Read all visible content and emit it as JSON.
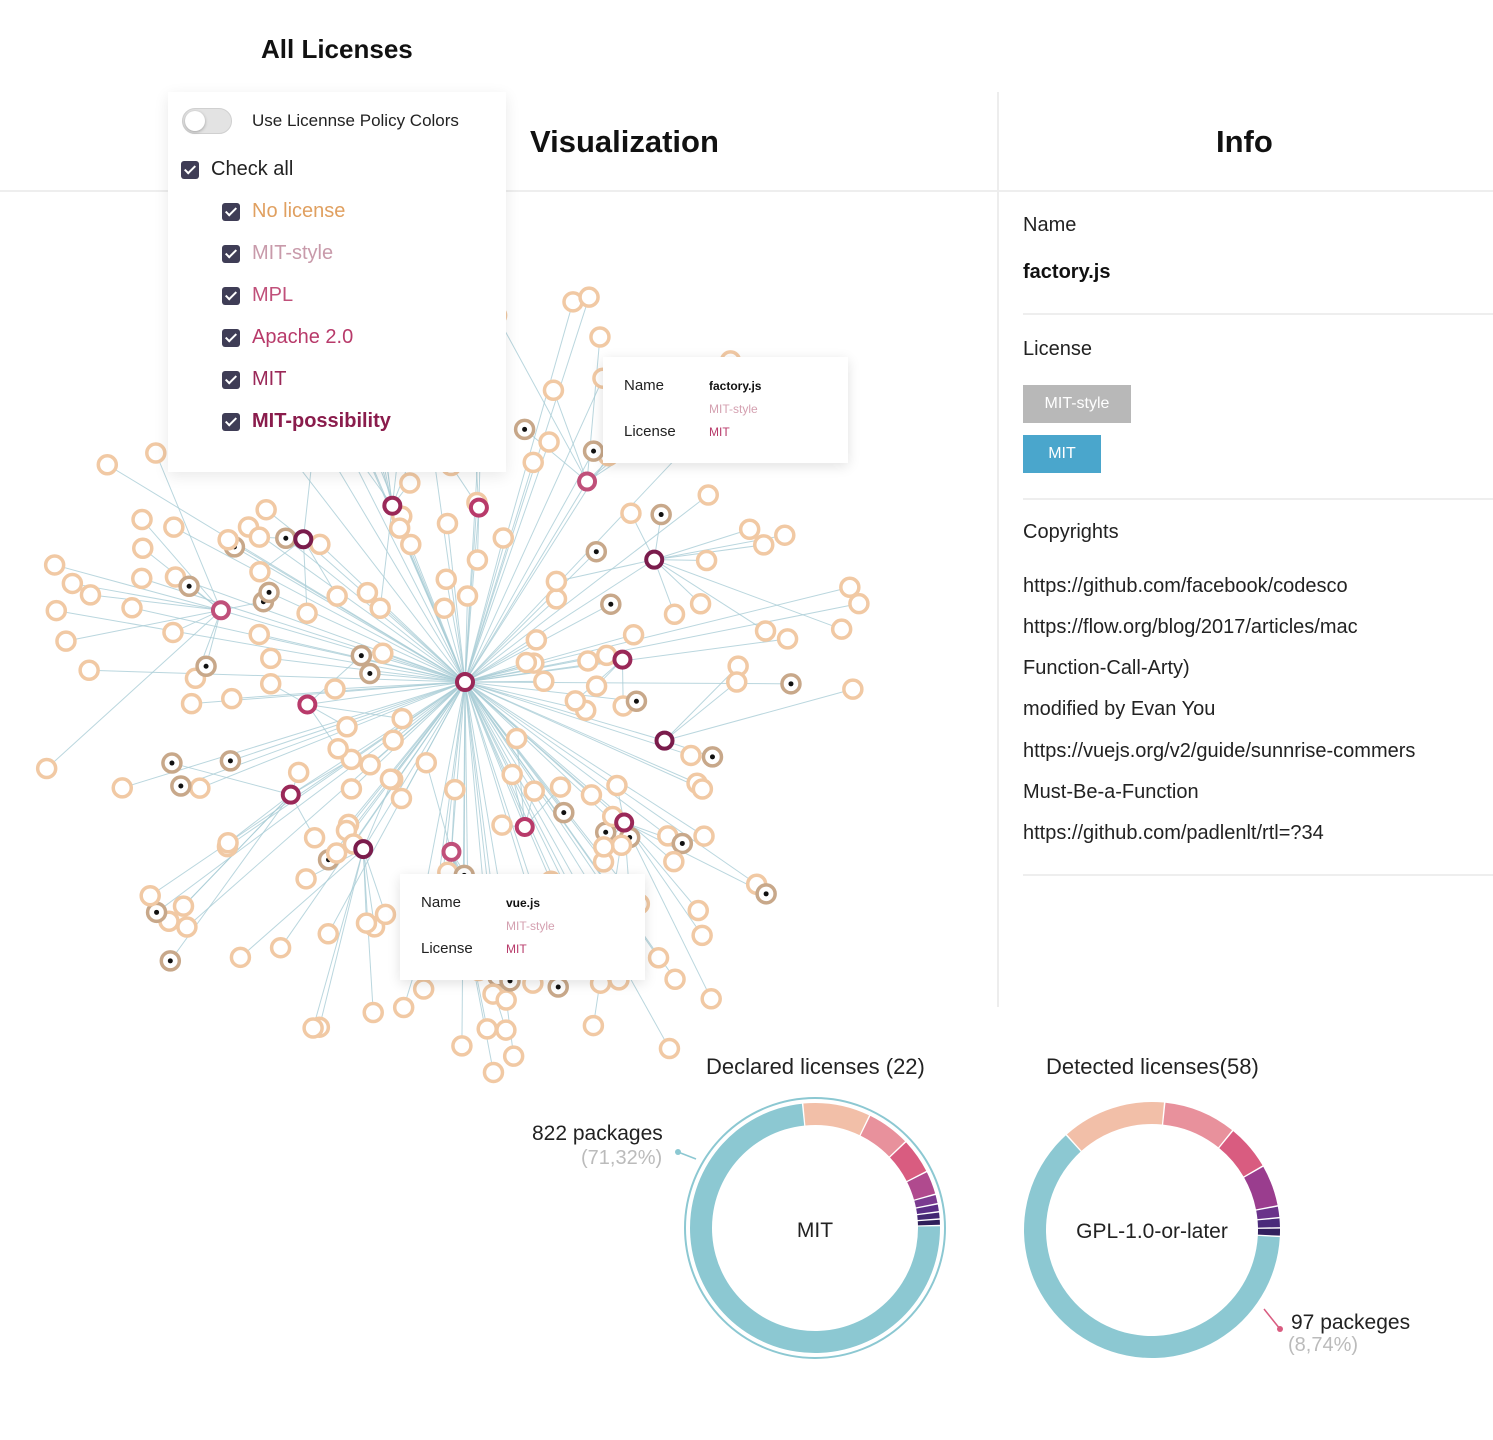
{
  "app": {
    "title": "All Licenses"
  },
  "filters": {
    "toggle_label": "Use Licennse Policy Colors",
    "check_all_label": "Check all",
    "items": [
      {
        "label": "No license",
        "color": "#e0a060"
      },
      {
        "label": "MIT-style",
        "color": "#c89aaa"
      },
      {
        "label": "MPL",
        "color": "#c0507a"
      },
      {
        "label": "Apache 2.0",
        "color": "#b83a6a"
      },
      {
        "label": "MIT",
        "color": "#9a2858"
      },
      {
        "label": "MIT-possibility",
        "color": "#8a1c4c"
      }
    ]
  },
  "visualization": {
    "title": "Visualization",
    "tooltips": [
      {
        "name_key": "Name",
        "license_key": "License",
        "name": "factory.js",
        "licenses": [
          "MIT-style",
          "MIT"
        ]
      },
      {
        "name_key": "Name",
        "license_key": "License",
        "name": "vue.js",
        "licenses": [
          "MIT-style",
          "MIT"
        ]
      }
    ]
  },
  "info": {
    "title": "Info",
    "name_label": "Name",
    "name_value": "factory.js",
    "license_label": "License",
    "license_badges": [
      {
        "label": "MIT-style",
        "color": "#b8b8b8"
      },
      {
        "label": "MIT",
        "color": "#4aa6cc"
      }
    ],
    "copyrights_label": "Copyrights",
    "copyrights": [
      "https://github.com/facebook/codesco",
      "https://flow.org/blog/2017/articles/mac",
      "Function-Call-Arty)",
      "modified by Evan You",
      "https://vuejs.org/v2/guide/sunnrise-commers",
      "Must-Be-a-Function",
      "https://github.com/padlenlt/rtl=?34"
    ]
  },
  "charts": {
    "declared": {
      "title": "Declared licenses (22)",
      "center_label": "MIT",
      "callout_main": "822 packages",
      "callout_sub": "(71,32%)"
    },
    "detected": {
      "title": "Detected licenses(58)",
      "center_label": "GPL-1.0-or-later",
      "callout_main": "97 packeges",
      "callout_sub": "(8,74%)"
    }
  },
  "chart_data": [
    {
      "type": "pie",
      "title": "Declared licenses (22)",
      "center_label": "MIT",
      "slices": [
        {
          "name": "MIT",
          "value": 71.32,
          "color": "#8cc8d2"
        },
        {
          "value": 8.5,
          "color": "#f2bfa8"
        },
        {
          "value": 5.5,
          "color": "#e8919c"
        },
        {
          "value": 4.5,
          "color": "#d95c80"
        },
        {
          "value": 3.0,
          "color": "#b04a8e"
        },
        {
          "value": 1.2,
          "color": "#7a3a90"
        },
        {
          "value": 1.0,
          "color": "#5a2d86"
        },
        {
          "value": 0.9,
          "color": "#432773"
        },
        {
          "value": 0.8,
          "color": "#2f1f5a"
        }
      ],
      "annotation": {
        "text": "822 packages",
        "sub": "(71,32%)"
      }
    },
    {
      "type": "pie",
      "title": "Detected licenses(58)",
      "center_label": "GPL-1.0-or-later",
      "slices": [
        {
          "name": "GPL-1.0-or-later",
          "value": 59.0,
          "color": "#8cc8d2"
        },
        {
          "value": 12.5,
          "color": "#f2bfa8"
        },
        {
          "value": 8.74,
          "color": "#e8919c"
        },
        {
          "value": 5.5,
          "color": "#d95c80"
        },
        {
          "value": 5.0,
          "color": "#9a3d8e"
        },
        {
          "value": 1.4,
          "color": "#6a338a"
        },
        {
          "value": 1.2,
          "color": "#4a2a7a"
        },
        {
          "value": 1.0,
          "color": "#33205e"
        }
      ],
      "annotation": {
        "text": "97 packeges",
        "sub": "(8,74%)"
      }
    }
  ]
}
